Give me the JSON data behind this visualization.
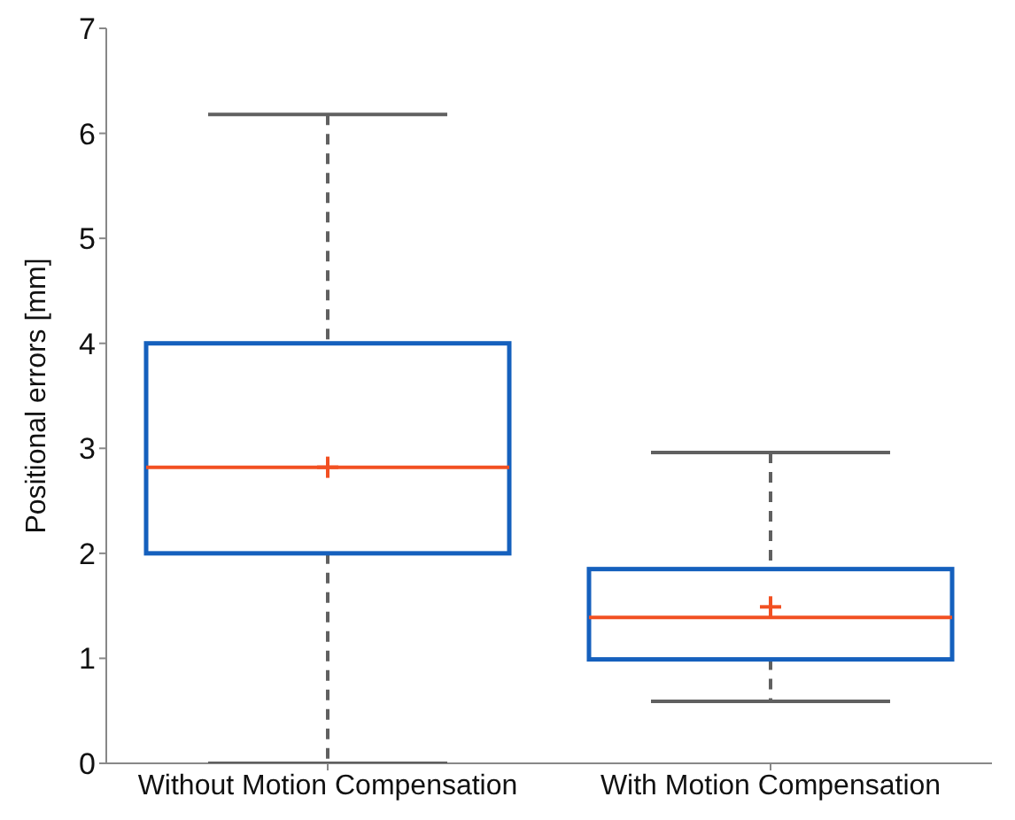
{
  "chart_data": {
    "type": "box",
    "ylabel": "Positional errors [mm]",
    "categories": [
      "Without Motion Compensation",
      "With Motion Compensation"
    ],
    "series": [
      {
        "color": "#1560bd",
        "boxes": [
          {
            "low": 0,
            "q1": 2.0,
            "median": 2.82,
            "q3": 4.0,
            "high": 6.18,
            "mean": 2.82
          },
          {
            "low": 0.59,
            "q1": 0.99,
            "median": 1.39,
            "q3": 1.85,
            "high": 2.96,
            "mean": 1.49
          }
        ]
      }
    ],
    "ylim": [
      0,
      7
    ],
    "yticks": [
      0,
      1,
      2,
      3,
      4,
      5,
      6,
      7
    ],
    "marker": "cross"
  }
}
